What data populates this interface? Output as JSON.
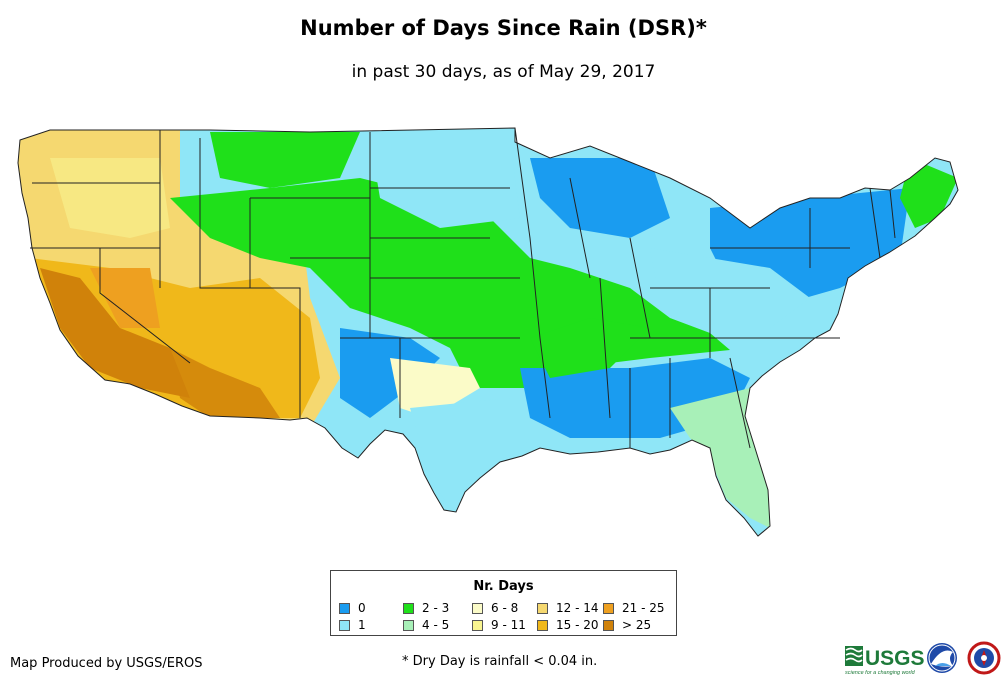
{
  "title": "Number of Days Since Rain (DSR)*",
  "subtitle": "in past 30 days, as of May 29, 2017",
  "legend": {
    "title": "Nr. Days",
    "items": [
      {
        "label": "0",
        "color": "#1a9cf0"
      },
      {
        "label": "1",
        "color": "#8fe6f7"
      },
      {
        "label": "2 - 3",
        "color": "#1fe01a"
      },
      {
        "label": "4 - 5",
        "color": "#a8f0b8"
      },
      {
        "label": "6 - 8",
        "color": "#fbfbc8"
      },
      {
        "label": "9 - 11",
        "color": "#f8f490"
      },
      {
        "label": "12 - 14",
        "color": "#f5d870"
      },
      {
        "label": "15 - 20",
        "color": "#f0b81a"
      },
      {
        "label": "21 - 25",
        "color": "#eea020"
      },
      {
        "label": "> 25",
        "color": "#d0820a"
      }
    ]
  },
  "footer": {
    "credit": "Map Produced by USGS/EROS",
    "note": "* Dry Day is rainfall < 0.04 in."
  },
  "logos": {
    "usgs_text": "USGS",
    "usgs_tagline": "science for a changing world"
  }
}
